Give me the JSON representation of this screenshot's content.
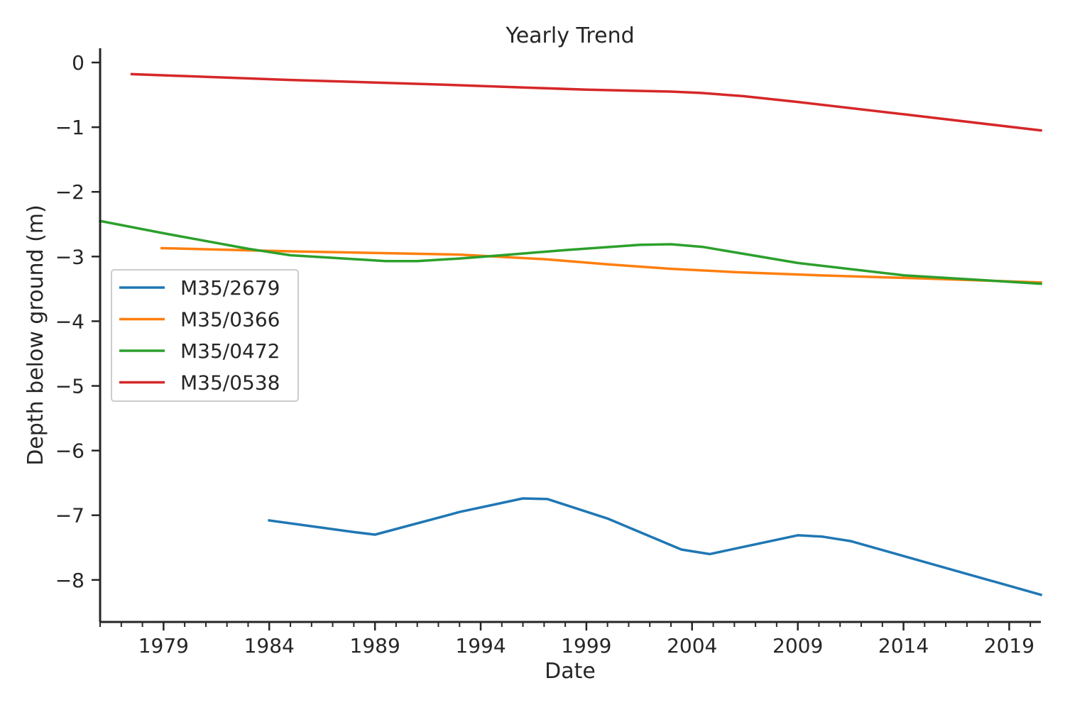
{
  "chart_data": {
    "type": "line",
    "title": "Yearly Trend",
    "xlabel": "Date",
    "ylabel": "Depth below ground (m)",
    "xlim": [
      "1976-01-01",
      "2020-07-01"
    ],
    "ylim": [
      -8.65,
      0.22
    ],
    "x_ticks": [
      {
        "date": "1979-01-01",
        "label": "1979"
      },
      {
        "date": "1984-01-01",
        "label": "1984"
      },
      {
        "date": "1989-01-01",
        "label": "1989"
      },
      {
        "date": "1994-01-01",
        "label": "1994"
      },
      {
        "date": "1999-01-01",
        "label": "1999"
      },
      {
        "date": "2004-01-01",
        "label": "2004"
      },
      {
        "date": "2009-01-01",
        "label": "2009"
      },
      {
        "date": "2014-01-01",
        "label": "2014"
      },
      {
        "date": "2019-01-01",
        "label": "2019"
      }
    ],
    "y_ticks": [
      {
        "value": 0,
        "label": "0"
      },
      {
        "value": -1,
        "label": "−1"
      },
      {
        "value": -2,
        "label": "−2"
      },
      {
        "value": -3,
        "label": "−3"
      },
      {
        "value": -4,
        "label": "−4"
      },
      {
        "value": -5,
        "label": "−5"
      },
      {
        "value": -6,
        "label": "−6"
      },
      {
        "value": -7,
        "label": "−7"
      },
      {
        "value": -8,
        "label": "−8"
      }
    ],
    "grid": false,
    "legend": "center-left",
    "series": [
      {
        "name": "M35/2679",
        "color": "#1f77b4",
        "points": [
          [
            "1984-01-01",
            -7.08
          ],
          [
            "1988-01-01",
            -7.26
          ],
          [
            "1989-01-01",
            -7.3
          ],
          [
            "1993-01-01",
            -6.95
          ],
          [
            "1996-01-01",
            -6.74
          ],
          [
            "1997-03-01",
            -6.75
          ],
          [
            "2000-01-01",
            -7.05
          ],
          [
            "2003-07-01",
            -7.53
          ],
          [
            "2004-11-01",
            -7.6
          ],
          [
            "2009-01-01",
            -7.31
          ],
          [
            "2010-03-01",
            -7.33
          ],
          [
            "2011-07-01",
            -7.4
          ],
          [
            "2020-07-01",
            -8.23
          ]
        ]
      },
      {
        "name": "M35/0366",
        "color": "#ff7f0e",
        "points": [
          [
            "1978-12-01",
            -2.87
          ],
          [
            "1985-01-01",
            -2.92
          ],
          [
            "1993-01-01",
            -2.97
          ],
          [
            "1997-01-01",
            -3.04
          ],
          [
            "2000-01-01",
            -3.12
          ],
          [
            "2003-01-01",
            -3.19
          ],
          [
            "2006-01-01",
            -3.24
          ],
          [
            "2010-01-01",
            -3.29
          ],
          [
            "2015-01-01",
            -3.34
          ],
          [
            "2020-07-01",
            -3.4
          ]
        ]
      },
      {
        "name": "M35/0472",
        "color": "#2ca02c",
        "points": [
          [
            "1976-01-01",
            -2.45
          ],
          [
            "1979-01-01",
            -2.64
          ],
          [
            "1983-01-01",
            -2.88
          ],
          [
            "1985-01-01",
            -2.98
          ],
          [
            "1987-01-01",
            -3.02
          ],
          [
            "1989-07-01",
            -3.07
          ],
          [
            "1991-01-01",
            -3.07
          ],
          [
            "1993-01-01",
            -3.03
          ],
          [
            "1995-01-01",
            -2.98
          ],
          [
            "1998-01-01",
            -2.9
          ],
          [
            "2001-07-01",
            -2.82
          ],
          [
            "2003-01-01",
            -2.81
          ],
          [
            "2004-07-01",
            -2.85
          ],
          [
            "2009-01-01",
            -3.1
          ],
          [
            "2014-01-01",
            -3.29
          ],
          [
            "2020-07-01",
            -3.42
          ]
        ]
      },
      {
        "name": "M35/0538",
        "color": "#d62728",
        "points": [
          [
            "1977-07-01",
            -0.18
          ],
          [
            "1985-01-01",
            -0.27
          ],
          [
            "1992-01-01",
            -0.34
          ],
          [
            "1999-01-01",
            -0.42
          ],
          [
            "2003-01-01",
            -0.45
          ],
          [
            "2004-06-01",
            -0.47
          ],
          [
            "2006-06-01",
            -0.52
          ],
          [
            "2009-01-01",
            -0.61
          ],
          [
            "2014-01-01",
            -0.8
          ],
          [
            "2020-07-01",
            -1.05
          ]
        ]
      }
    ]
  }
}
